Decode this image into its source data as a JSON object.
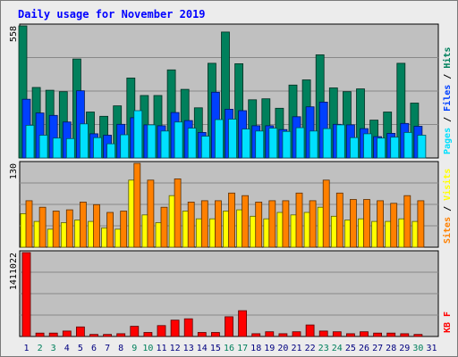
{
  "title": "Daily usage for November 2019",
  "colors": {
    "background": "#c0c0c0",
    "outer": "#ececec",
    "hits": "#00805c",
    "files": "#0040ff",
    "pages": "#00e0ff",
    "visits": "#ffff00",
    "sites": "#ff8000",
    "kbytes": "#ff0000",
    "weekend_label": "#00805c",
    "weekday_label": "#000080",
    "title": "#0000ff"
  },
  "chart_data": [
    {
      "type": "bar",
      "name": "traffic",
      "ymax_label": "558",
      "ylim": [
        0,
        558
      ],
      "legend": [
        {
          "text": "Pages",
          "color_key": "pages"
        },
        {
          "text": "Files",
          "color_key": "files"
        },
        {
          "text": "Hits",
          "color_key": "hits"
        }
      ],
      "categories": [
        "1",
        "2",
        "3",
        "4",
        "5",
        "6",
        "7",
        "8",
        "9",
        "10",
        "11",
        "12",
        "13",
        "14",
        "15",
        "16",
        "17",
        "18",
        "19",
        "20",
        "21",
        "22",
        "23",
        "24",
        "25",
        "26",
        "27",
        "28",
        "29",
        "30",
        "31"
      ],
      "series": [
        {
          "name": "Hits",
          "color_key": "hits",
          "values": [
            558,
            298,
            286,
            280,
            418,
            194,
            176,
            220,
            338,
            264,
            264,
            372,
            290,
            212,
            400,
            532,
            398,
            246,
            250,
            210,
            308,
            330,
            436,
            296,
            280,
            292,
            160,
            194,
            400,
            232,
            0
          ]
        },
        {
          "name": "Files",
          "color_key": "files",
          "values": [
            248,
            190,
            180,
            152,
            284,
            102,
            96,
            142,
            170,
            140,
            136,
            192,
            158,
            108,
            278,
            206,
            200,
            136,
            136,
            120,
            174,
            216,
            236,
            142,
            140,
            124,
            90,
            104,
            146,
            134,
            0
          ]
        },
        {
          "name": "Pages",
          "color_key": "pages",
          "values": [
            138,
            96,
            84,
            82,
            144,
            86,
            60,
            98,
            200,
            140,
            114,
            152,
            126,
            92,
            162,
            164,
            122,
            114,
            126,
            112,
            128,
            114,
            124,
            140,
            86,
            102,
            84,
            88,
            108,
            96,
            0
          ]
        }
      ]
    },
    {
      "type": "bar",
      "name": "visitors",
      "ymax_label": "130",
      "ylim": [
        0,
        130
      ],
      "legend": [
        {
          "text": "Sites",
          "color_key": "sites"
        },
        {
          "text": "Visits",
          "color_key": "visits"
        }
      ],
      "categories": [
        "1",
        "2",
        "3",
        "4",
        "5",
        "6",
        "7",
        "8",
        "9",
        "10",
        "11",
        "12",
        "13",
        "14",
        "15",
        "16",
        "17",
        "18",
        "19",
        "20",
        "21",
        "22",
        "23",
        "24",
        "25",
        "26",
        "27",
        "28",
        "29",
        "30",
        "31"
      ],
      "series": [
        {
          "name": "Visits",
          "color_key": "visits",
          "values": [
            52,
            40,
            28,
            38,
            42,
            40,
            30,
            28,
            104,
            50,
            38,
            80,
            56,
            44,
            44,
            56,
            58,
            48,
            44,
            54,
            50,
            54,
            62,
            48,
            42,
            44,
            40,
            40,
            44,
            40,
            0
          ]
        },
        {
          "name": "Sites",
          "color_key": "sites",
          "values": [
            72,
            62,
            56,
            58,
            70,
            66,
            54,
            56,
            130,
            104,
            62,
            106,
            70,
            72,
            72,
            84,
            80,
            70,
            72,
            72,
            84,
            72,
            104,
            84,
            74,
            74,
            72,
            68,
            80,
            72,
            0
          ]
        }
      ]
    },
    {
      "type": "bar",
      "name": "kbytes",
      "ymax_label": "1411022",
      "ylim": [
        0,
        1411022
      ],
      "legend": [
        {
          "text": "KB F",
          "color_key": "kbytes"
        }
      ],
      "categories": [
        "1",
        "2",
        "3",
        "4",
        "5",
        "6",
        "7",
        "8",
        "9",
        "10",
        "11",
        "12",
        "13",
        "14",
        "15",
        "16",
        "17",
        "18",
        "19",
        "20",
        "21",
        "22",
        "23",
        "24",
        "25",
        "26",
        "27",
        "28",
        "29",
        "30",
        "31"
      ],
      "series": [
        {
          "name": "KB F",
          "color_key": "kbytes",
          "values": [
            1411022,
            57000,
            57000,
            91000,
            160000,
            34000,
            34000,
            46000,
            171000,
            68000,
            183000,
            274000,
            297000,
            68000,
            68000,
            331000,
            434000,
            46000,
            80000,
            46000,
            80000,
            194000,
            91000,
            80000,
            46000,
            80000,
            57000,
            57000,
            46000,
            34000,
            0
          ]
        }
      ]
    }
  ],
  "day_labels": [
    "1",
    "2",
    "3",
    "4",
    "5",
    "6",
    "7",
    "8",
    "9",
    "10",
    "11",
    "12",
    "13",
    "14",
    "15",
    "16",
    "17",
    "18",
    "19",
    "20",
    "21",
    "22",
    "23",
    "24",
    "25",
    "26",
    "27",
    "28",
    "29",
    "30",
    "31"
  ],
  "weekend_days": [
    "2",
    "3",
    "9",
    "10",
    "16",
    "17",
    "23",
    "24",
    "30"
  ]
}
